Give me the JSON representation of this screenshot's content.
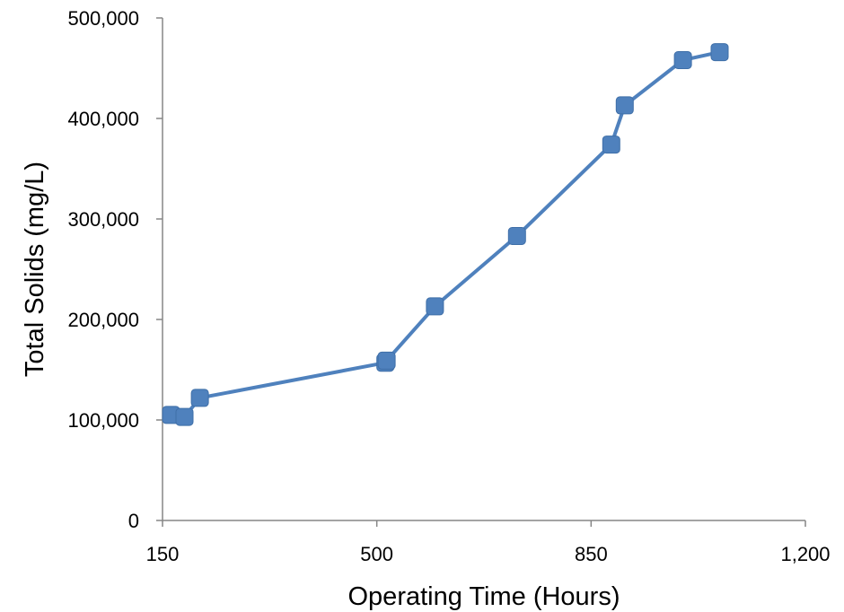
{
  "chart_data": {
    "type": "line",
    "title": "",
    "xlabel": "Operating Time (Hours)",
    "ylabel": "Total Solids (mg/L)",
    "xlim": [
      150,
      1200
    ],
    "ylim": [
      0,
      500000
    ],
    "x_ticks": [
      150,
      500,
      850,
      1200
    ],
    "x_tick_labels": [
      "150",
      "500",
      "850",
      "1,200"
    ],
    "y_ticks": [
      0,
      100000,
      200000,
      300000,
      400000,
      500000
    ],
    "y_tick_labels": [
      "0",
      "100,000",
      "200,000",
      "300,000",
      "400,000",
      "500,000"
    ],
    "grid": false,
    "legend": "none",
    "series": [
      {
        "color": "#4f81bd",
        "marker": "rounded-square",
        "points": [
          {
            "x": 164,
            "y": 105000
          },
          {
            "x": 186,
            "y": 103000
          },
          {
            "x": 211,
            "y": 122000
          },
          {
            "x": 514,
            "y": 157000
          },
          {
            "x": 516,
            "y": 159000
          },
          {
            "x": 595,
            "y": 213000
          },
          {
            "x": 729,
            "y": 283000
          },
          {
            "x": 883,
            "y": 374000
          },
          {
            "x": 905,
            "y": 413000
          },
          {
            "x": 1000,
            "y": 458000
          },
          {
            "x": 1060,
            "y": 466000
          }
        ]
      }
    ]
  }
}
